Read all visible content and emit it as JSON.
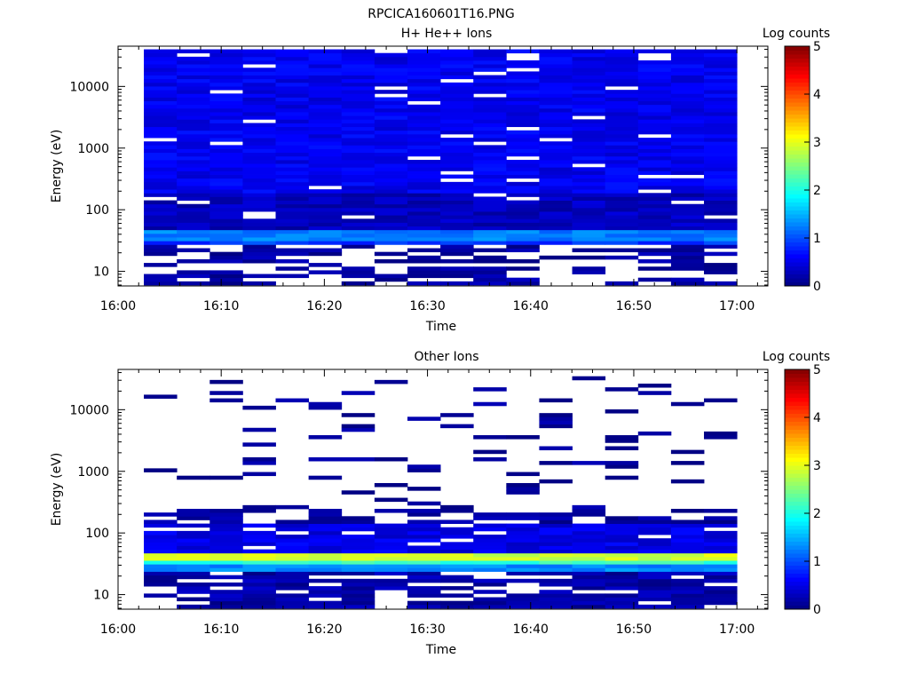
{
  "figure_title": "RPCICA160601T16.PNG",
  "chart_data": [
    {
      "type": "heatmap",
      "title": "H+ He++ Ions",
      "xlabel": "Time",
      "ylabel": "Energy (eV)",
      "yscale": "log",
      "ylim": [
        5.8,
        45000
      ],
      "xlim": [
        "16:00",
        "17:03"
      ],
      "x_ticks": [
        "16:00",
        "16:10",
        "16:20",
        "16:30",
        "16:40",
        "16:50",
        "17:00"
      ],
      "y_ticks": [
        "10",
        "100",
        "1000",
        "10000"
      ],
      "colorbar": {
        "label": "Log counts",
        "range": [
          0,
          5
        ],
        "ticks": [
          "0",
          "1",
          "2",
          "3",
          "4",
          "5"
        ]
      },
      "time_bins": {
        "start": "16:02.5",
        "end": "17:00",
        "count": 18
      },
      "energy_bins": {
        "min_eV": 6,
        "max_eV": 40000
      },
      "profile": [
        {
          "energy_min_eV": 6,
          "energy_max_eV": 28,
          "log_counts": 0.15,
          "fill_fraction": 0.55
        },
        {
          "energy_min_eV": 28,
          "energy_max_eV": 33,
          "log_counts": 0.9,
          "fill_fraction": 0.95
        },
        {
          "energy_min_eV": 33,
          "energy_max_eV": 45,
          "log_counts": 1.25,
          "fill_fraction": 1.0
        },
        {
          "energy_min_eV": 45,
          "energy_max_eV": 200,
          "log_counts": 0.3,
          "fill_fraction": 0.92
        },
        {
          "energy_min_eV": 200,
          "energy_max_eV": 40000,
          "log_counts": 0.55,
          "fill_fraction": 0.95
        }
      ]
    },
    {
      "type": "heatmap",
      "title": "Other Ions",
      "xlabel": "Time",
      "ylabel": "Energy (eV)",
      "yscale": "log",
      "ylim": [
        5.8,
        45000
      ],
      "xlim": [
        "16:00",
        "17:03"
      ],
      "x_ticks": [
        "16:00",
        "16:10",
        "16:20",
        "16:30",
        "16:40",
        "16:50",
        "17:00"
      ],
      "y_ticks": [
        "10",
        "100",
        "1000",
        "10000"
      ],
      "colorbar": {
        "label": "Log counts",
        "range": [
          0,
          5
        ],
        "ticks": [
          "0",
          "1",
          "2",
          "3",
          "4",
          "5"
        ]
      },
      "time_bins": {
        "start": "16:02.5",
        "end": "17:00",
        "count": 18
      },
      "energy_bins": {
        "min_eV": 6,
        "max_eV": 40000
      },
      "profile": [
        {
          "energy_min_eV": 6,
          "energy_max_eV": 25,
          "log_counts": 0.2,
          "fill_fraction": 0.75
        },
        {
          "energy_min_eV": 25,
          "energy_max_eV": 30,
          "log_counts": 1.3,
          "fill_fraction": 1.0
        },
        {
          "energy_min_eV": 30,
          "energy_max_eV": 34,
          "log_counts": 2.1,
          "fill_fraction": 1.0
        },
        {
          "energy_min_eV": 34,
          "energy_max_eV": 46,
          "log_counts": 2.9,
          "fill_fraction": 1.0
        },
        {
          "energy_min_eV": 46,
          "energy_max_eV": 50,
          "log_counts": 2.0,
          "fill_fraction": 1.0
        },
        {
          "energy_min_eV": 50,
          "energy_max_eV": 150,
          "log_counts": 0.5,
          "fill_fraction": 0.9
        },
        {
          "energy_min_eV": 150,
          "energy_max_eV": 230,
          "log_counts": 0.15,
          "fill_fraction": 0.5
        },
        {
          "energy_min_eV": 230,
          "energy_max_eV": 40000,
          "log_counts": 0.1,
          "fill_fraction": 0.12
        }
      ]
    }
  ]
}
